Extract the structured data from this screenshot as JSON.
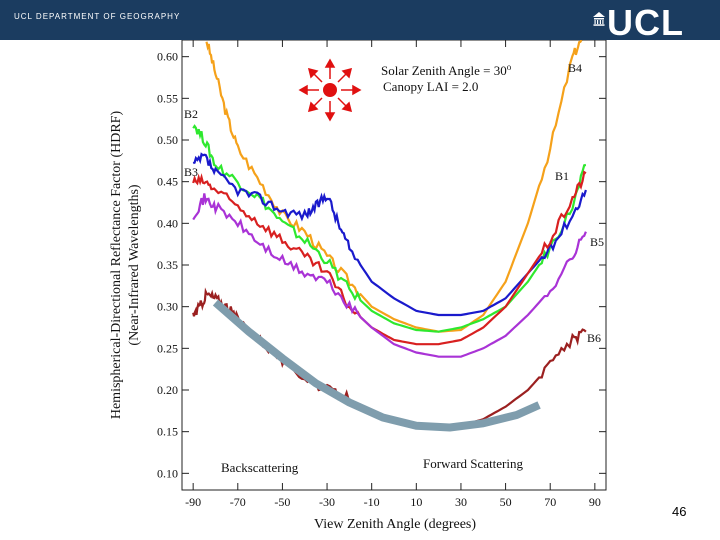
{
  "header": {
    "department": "UCL DEPARTMENT OF GEOGRAPHY",
    "logo": "UCL"
  },
  "slide_number": "46",
  "chart_data": {
    "type": "line",
    "xlabel": "View Zenith Angle (degrees)",
    "ylabel_line1": "Hemispherical-Directional Reflectance Factor (HDRF)",
    "ylabel_line2": "(Near-Infrared Wavelengths)",
    "xlim": [
      -95,
      95
    ],
    "ylim": [
      0.08,
      0.62
    ],
    "xticks": [
      -90,
      -70,
      -50,
      -30,
      -10,
      10,
      30,
      50,
      70,
      90
    ],
    "yticks": [
      0.1,
      0.15,
      0.2,
      0.25,
      0.3,
      0.35,
      0.4,
      0.45,
      0.5,
      0.55,
      0.6
    ],
    "annotations": {
      "solar_zenith": "Solar Zenith Angle = 30",
      "solar_zenith_unit": "o",
      "lai": "Canopy LAI = 2.0",
      "backscattering": "Backscattering",
      "forward": "Forward Scattering"
    },
    "sun_icon": "sun-icon",
    "series": [
      {
        "name": "B4",
        "color": "#f5a11a",
        "x": [
          -84,
          -80,
          -75,
          -70,
          -60,
          -50,
          -40,
          -30,
          -20,
          -10,
          0,
          10,
          20,
          30,
          40,
          50,
          60,
          70,
          80,
          84
        ],
        "y": [
          0.62,
          0.58,
          0.53,
          0.49,
          0.45,
          0.41,
          0.39,
          0.36,
          0.33,
          0.3,
          0.285,
          0.275,
          0.27,
          0.272,
          0.29,
          0.33,
          0.4,
          0.49,
          0.6,
          0.62
        ]
      },
      {
        "name": "B2",
        "color": "#2ee82e",
        "x": [
          -90,
          -85,
          -80,
          -70,
          -60,
          -50,
          -40,
          -30,
          -20,
          -10,
          0,
          10,
          20,
          30,
          40,
          50,
          60,
          70,
          80,
          86
        ],
        "y": [
          0.52,
          0.5,
          0.47,
          0.45,
          0.43,
          0.4,
          0.38,
          0.355,
          0.32,
          0.295,
          0.28,
          0.272,
          0.27,
          0.275,
          0.285,
          0.3,
          0.33,
          0.37,
          0.42,
          0.47
        ]
      },
      {
        "name": "B3",
        "color": "#1a1acc",
        "x": [
          -90,
          -85,
          -80,
          -70,
          -60,
          -50,
          -40,
          -35,
          -30,
          -25,
          -20,
          -10,
          0,
          10,
          20,
          30,
          40,
          50,
          60,
          70,
          80,
          86
        ],
        "y": [
          0.47,
          0.48,
          0.46,
          0.44,
          0.43,
          0.415,
          0.41,
          0.42,
          0.435,
          0.4,
          0.37,
          0.33,
          0.31,
          0.295,
          0.29,
          0.29,
          0.295,
          0.31,
          0.34,
          0.37,
          0.41,
          0.44
        ]
      },
      {
        "name": "B1",
        "color": "#d82020",
        "x": [
          -90,
          -85,
          -80,
          -70,
          -60,
          -50,
          -40,
          -30,
          -20,
          -10,
          0,
          10,
          20,
          30,
          40,
          50,
          60,
          70,
          80,
          86
        ],
        "y": [
          0.45,
          0.45,
          0.44,
          0.42,
          0.4,
          0.38,
          0.36,
          0.34,
          0.3,
          0.275,
          0.26,
          0.255,
          0.255,
          0.26,
          0.275,
          0.3,
          0.34,
          0.38,
          0.43,
          0.46
        ]
      },
      {
        "name": "B5",
        "color": "#a933d6",
        "x": [
          -90,
          -85,
          -80,
          -70,
          -60,
          -50,
          -40,
          -30,
          -20,
          -10,
          0,
          10,
          20,
          30,
          40,
          50,
          60,
          70,
          80,
          86
        ],
        "y": [
          0.41,
          0.43,
          0.42,
          0.4,
          0.375,
          0.355,
          0.34,
          0.33,
          0.3,
          0.275,
          0.255,
          0.245,
          0.24,
          0.24,
          0.25,
          0.265,
          0.29,
          0.32,
          0.36,
          0.39
        ]
      },
      {
        "name": "B6",
        "color": "#9b2020",
        "x": [
          -90,
          -87,
          -84,
          -80,
          -75,
          -70,
          -60,
          -50,
          -40,
          -30,
          -20,
          -10,
          0,
          10,
          20,
          30,
          40,
          50,
          60,
          70,
          80,
          86
        ],
        "y": [
          0.29,
          0.3,
          0.315,
          0.31,
          0.3,
          0.285,
          0.26,
          0.235,
          0.215,
          0.2,
          0.19,
          0.175,
          0.165,
          0.158,
          0.155,
          0.157,
          0.165,
          0.18,
          0.2,
          0.23,
          0.26,
          0.27
        ]
      }
    ],
    "trend_arc": {
      "color": "#7f9dad",
      "x": [
        -80,
        -65,
        -50,
        -35,
        -20,
        -5,
        10,
        25,
        40,
        55,
        65
      ],
      "y": [
        0.305,
        0.27,
        0.238,
        0.208,
        0.185,
        0.167,
        0.157,
        0.155,
        0.16,
        0.17,
        0.182
      ]
    }
  }
}
